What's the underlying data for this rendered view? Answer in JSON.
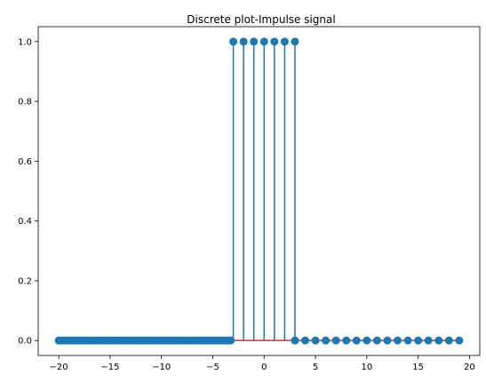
{
  "chart_data": {
    "type": "stem",
    "title": "Discrete plot-Impulse signal",
    "xlabel": "",
    "ylabel": "",
    "xlim": [
      -22,
      21
    ],
    "ylim": [
      -0.05,
      1.05
    ],
    "xticks": [
      -20,
      -15,
      -10,
      -5,
      0,
      5,
      10,
      15,
      20
    ],
    "yticks": [
      0.0,
      0.2,
      0.4,
      0.6,
      0.8,
      1.0
    ],
    "xtick_labels": [
      "−20",
      "−15",
      "−10",
      "−5",
      "0",
      "5",
      "10",
      "15",
      "20"
    ],
    "ytick_labels": [
      "0.0",
      "0.2",
      "0.4",
      "0.6",
      "0.8",
      "1.0"
    ],
    "x": [
      -20,
      -19.75,
      -19.5,
      -19.25,
      -19,
      -18.75,
      -18.5,
      -18.25,
      -18,
      -17.75,
      -17.5,
      -17.25,
      -17,
      -16.75,
      -16.5,
      -16.25,
      -16,
      -15.75,
      -15.5,
      -15.25,
      -15,
      -14.75,
      -14.5,
      -14.25,
      -14,
      -13.75,
      -13.5,
      -13.25,
      -13,
      -12.75,
      -12.5,
      -12.25,
      -12,
      -11.75,
      -11.5,
      -11.25,
      -11,
      -10.75,
      -10.5,
      -10.25,
      -10,
      -9.75,
      -9.5,
      -9.25,
      -9,
      -8.75,
      -8.5,
      -8.25,
      -8,
      -7.75,
      -7.5,
      -7.25,
      -7,
      -6.75,
      -6.5,
      -6.25,
      -6,
      -5.75,
      -5.5,
      -5.25,
      -5,
      -4.75,
      -4.5,
      -4.25,
      -4,
      -3.75,
      -3.5,
      -3.25,
      -3,
      -2,
      -1,
      0,
      1,
      2,
      3,
      3,
      4,
      5,
      6,
      7,
      8,
      9,
      10,
      11,
      12,
      13,
      14,
      15,
      16,
      17,
      18,
      19
    ],
    "y": [
      0,
      0,
      0,
      0,
      0,
      0,
      0,
      0,
      0,
      0,
      0,
      0,
      0,
      0,
      0,
      0,
      0,
      0,
      0,
      0,
      0,
      0,
      0,
      0,
      0,
      0,
      0,
      0,
      0,
      0,
      0,
      0,
      0,
      0,
      0,
      0,
      0,
      0,
      0,
      0,
      0,
      0,
      0,
      0,
      0,
      0,
      0,
      0,
      0,
      0,
      0,
      0,
      0,
      0,
      0,
      0,
      0,
      0,
      0,
      0,
      0,
      0,
      0,
      0,
      0,
      0,
      0,
      0,
      1,
      1,
      1,
      1,
      1,
      1,
      1,
      0,
      0,
      0,
      0,
      0,
      0,
      0,
      0,
      0,
      0,
      0,
      0,
      0,
      0,
      0,
      0,
      0
    ],
    "colors": {
      "stem": "#1f77b4",
      "marker": "#1f77b4",
      "baseline": "#d62728"
    },
    "grid": false,
    "legend": "none"
  }
}
